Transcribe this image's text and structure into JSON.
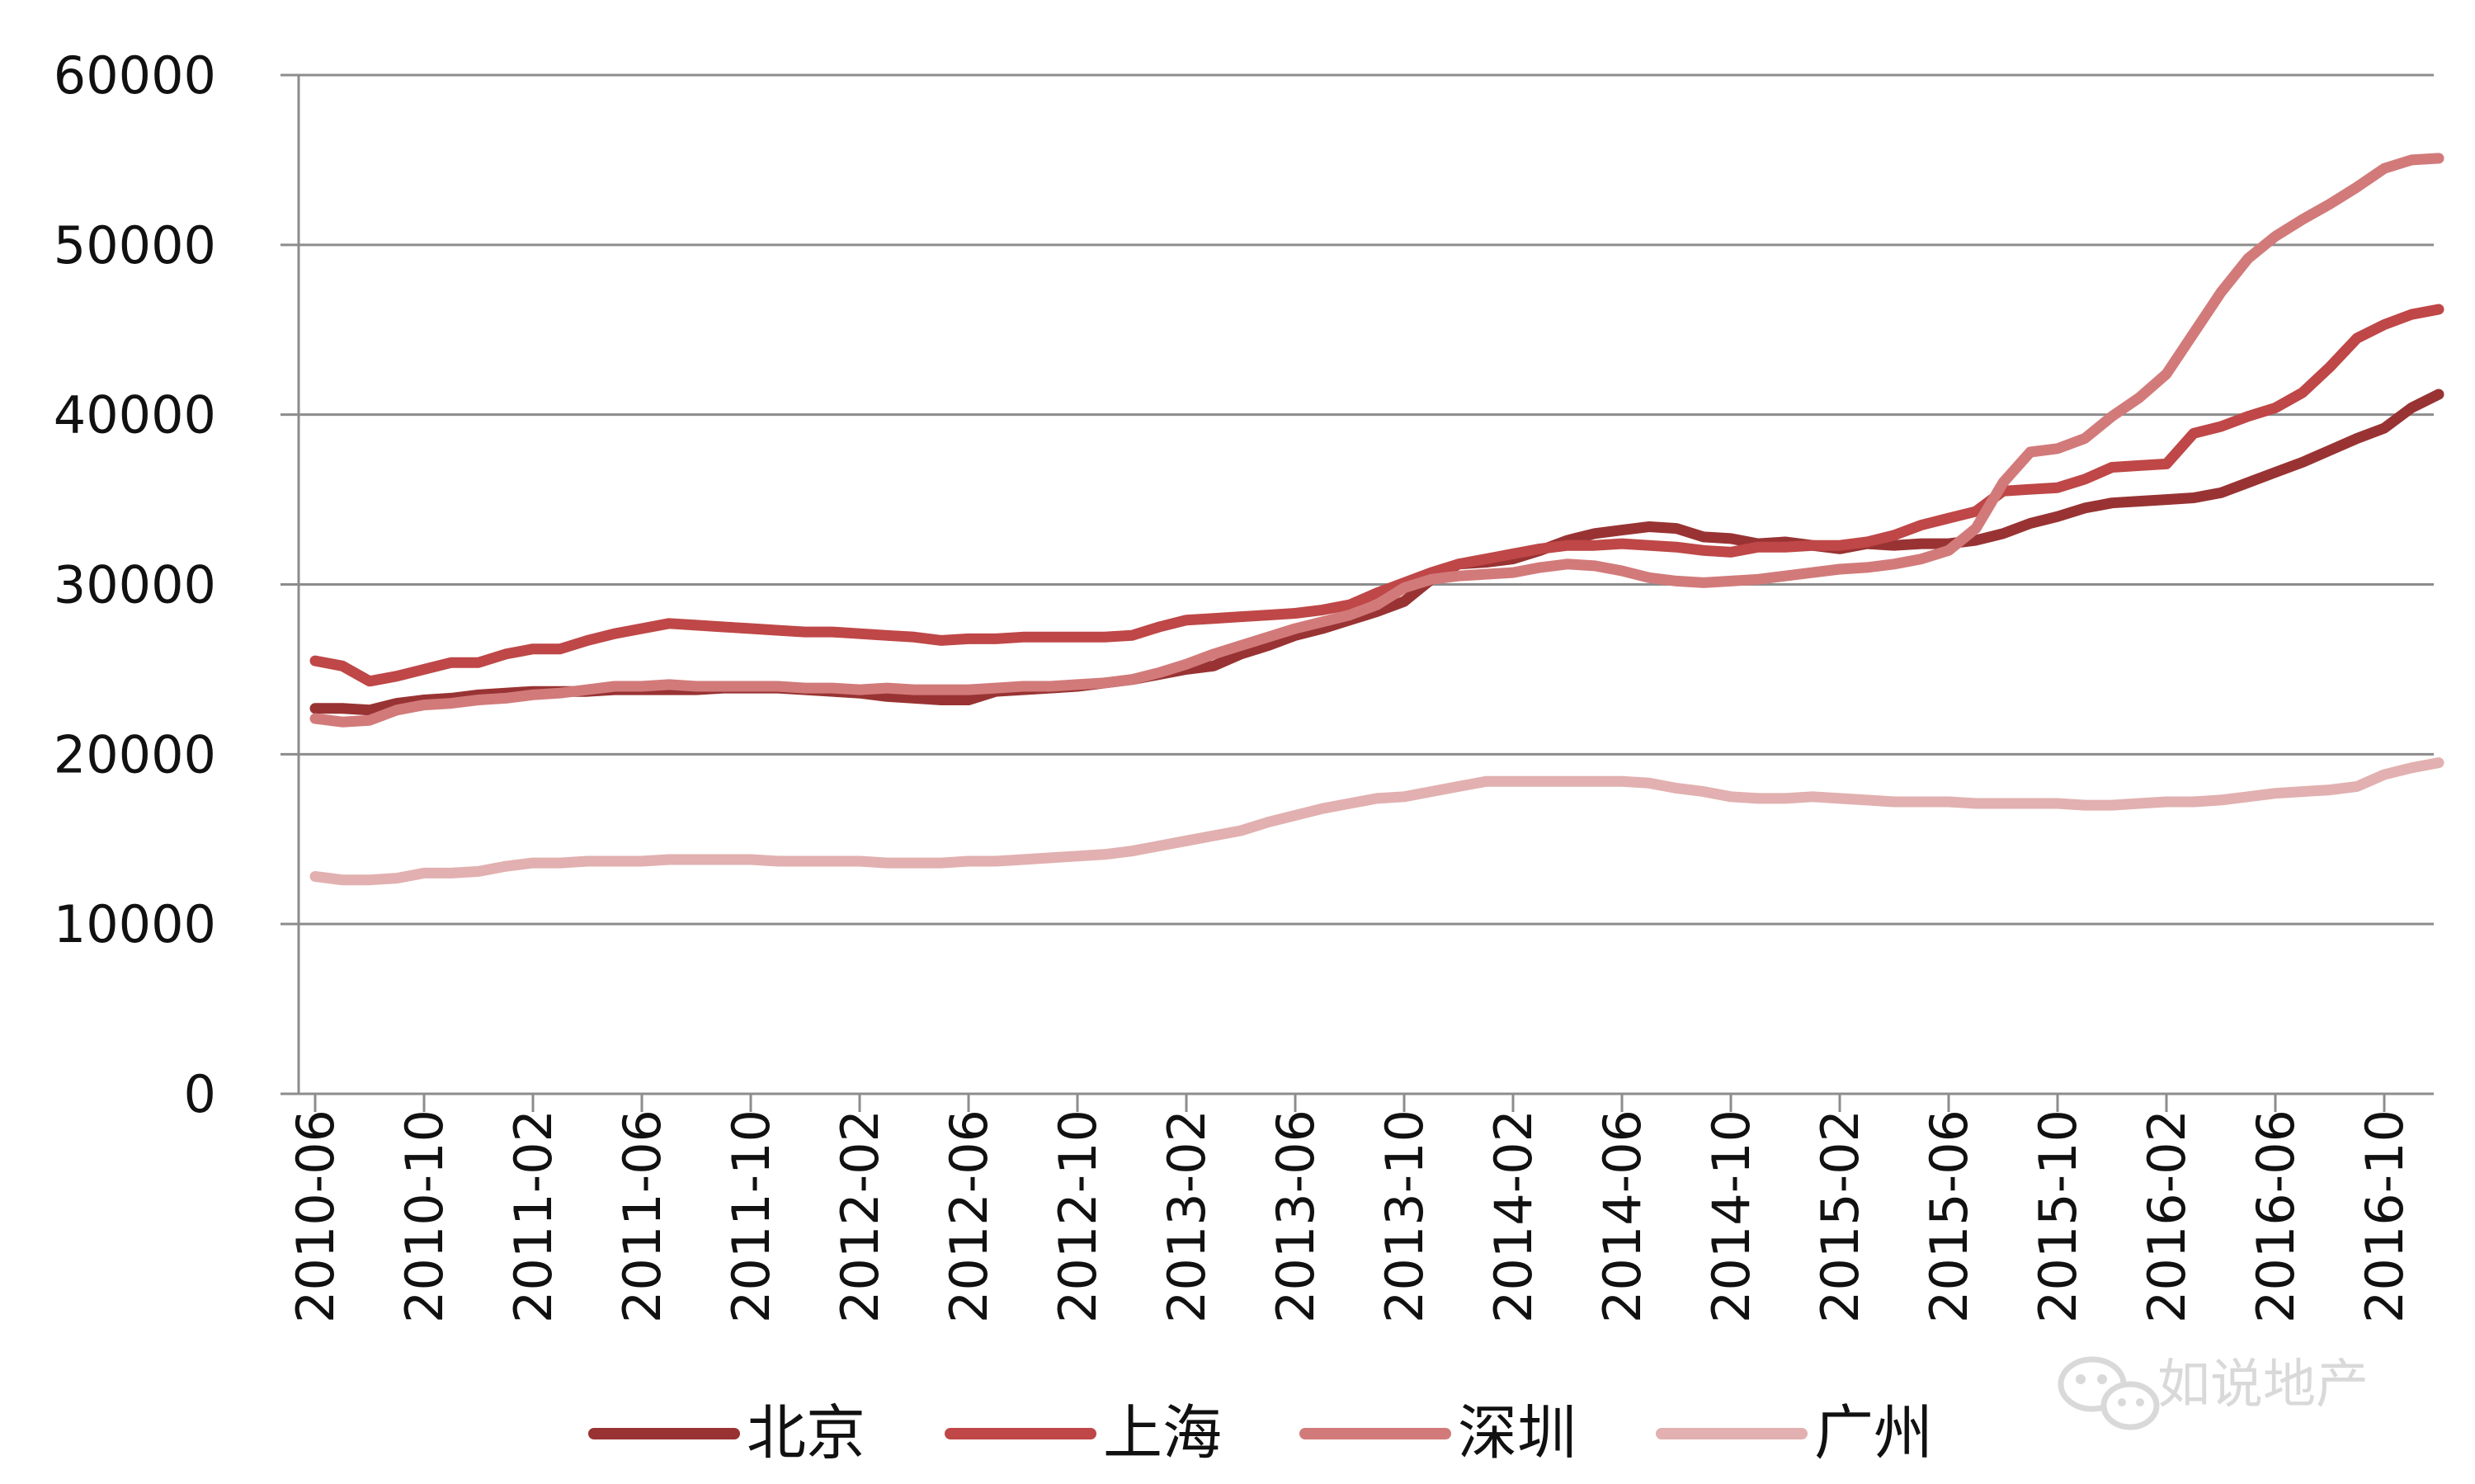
{
  "chart_data": {
    "type": "line",
    "title": "",
    "xlabel": "",
    "ylabel": "",
    "ylim": [
      0,
      60000
    ],
    "yticks": [
      "0",
      "10000",
      "20000",
      "30000",
      "40000",
      "50000",
      "60000"
    ],
    "xtick_labels": [
      "2010-06",
      "2010-10",
      "2011-02",
      "2011-06",
      "2011-10",
      "2012-02",
      "2012-06",
      "2012-10",
      "2013-02",
      "2013-06",
      "2013-10",
      "2014-02",
      "2014-06",
      "2014-10",
      "2015-02",
      "2015-06",
      "2015-10",
      "2016-02",
      "2016-06",
      "2016-10"
    ],
    "x": [
      "2010-06",
      "2010-07",
      "2010-08",
      "2010-09",
      "2010-10",
      "2010-11",
      "2010-12",
      "2011-01",
      "2011-02",
      "2011-03",
      "2011-04",
      "2011-05",
      "2011-06",
      "2011-07",
      "2011-08",
      "2011-09",
      "2011-10",
      "2011-11",
      "2011-12",
      "2012-01",
      "2012-02",
      "2012-03",
      "2012-04",
      "2012-05",
      "2012-06",
      "2012-07",
      "2012-08",
      "2012-09",
      "2012-10",
      "2012-11",
      "2012-12",
      "2013-01",
      "2013-02",
      "2013-03",
      "2013-04",
      "2013-05",
      "2013-06",
      "2013-07",
      "2013-08",
      "2013-09",
      "2013-10",
      "2013-11",
      "2013-12",
      "2014-01",
      "2014-02",
      "2014-03",
      "2014-04",
      "2014-05",
      "2014-06",
      "2014-07",
      "2014-08",
      "2014-09",
      "2014-10",
      "2014-11",
      "2014-12",
      "2015-01",
      "2015-02",
      "2015-03",
      "2015-04",
      "2015-05",
      "2015-06",
      "2015-07",
      "2015-08",
      "2015-09",
      "2015-10",
      "2015-11",
      "2015-12",
      "2016-01",
      "2016-02",
      "2016-03",
      "2016-04",
      "2016-05",
      "2016-06",
      "2016-07",
      "2016-08",
      "2016-09",
      "2016-10",
      "2016-11",
      "2016-12"
    ],
    "grid": true,
    "legend_position": "bottom",
    "series": [
      {
        "name": "北京",
        "color": "#993333",
        "values": [
          22700,
          22700,
          22600,
          23000,
          23200,
          23300,
          23500,
          23600,
          23700,
          23700,
          23700,
          23800,
          23800,
          23800,
          23800,
          23900,
          23900,
          23900,
          23800,
          23700,
          23600,
          23400,
          23300,
          23200,
          23200,
          23700,
          23800,
          23900,
          24000,
          24200,
          24400,
          24700,
          25000,
          25200,
          25900,
          26400,
          27000,
          27400,
          27900,
          28400,
          29000,
          30300,
          31200,
          31300,
          31500,
          32000,
          32600,
          33000,
          33200,
          33400,
          33300,
          32800,
          32700,
          32400,
          32500,
          32300,
          32100,
          32400,
          32300,
          32400,
          32400,
          32600,
          33000,
          33600,
          34000,
          34500,
          34800,
          34900,
          35000,
          35100,
          35400,
          36000,
          36600,
          37200,
          37900,
          38600,
          39200,
          40400,
          41200
        ]
      },
      {
        "name": "上海",
        "color": "#BF4747",
        "values": [
          25500,
          25200,
          24300,
          24600,
          25000,
          25400,
          25400,
          25900,
          26200,
          26200,
          26700,
          27100,
          27400,
          27700,
          27600,
          27500,
          27400,
          27300,
          27200,
          27200,
          27100,
          27000,
          26900,
          26700,
          26800,
          26800,
          26900,
          26900,
          26900,
          26900,
          27000,
          27500,
          27900,
          28000,
          28100,
          28200,
          28300,
          28500,
          28800,
          29500,
          30100,
          30700,
          31200,
          31500,
          31800,
          32100,
          32300,
          32300,
          32400,
          32300,
          32200,
          32000,
          31900,
          32200,
          32200,
          32300,
          32300,
          32500,
          32900,
          33500,
          33900,
          34300,
          35500,
          35600,
          35700,
          36200,
          36900,
          37000,
          37100,
          38900,
          39300,
          39900,
          40400,
          41300,
          42800,
          44500,
          45300,
          45900,
          46200
        ]
      },
      {
        "name": "深圳",
        "color": "#D27A7A",
        "values": [
          22100,
          21900,
          22000,
          22600,
          22900,
          23000,
          23200,
          23300,
          23500,
          23600,
          23800,
          24000,
          24000,
          24100,
          24000,
          24000,
          24000,
          24000,
          23900,
          23900,
          23800,
          23900,
          23800,
          23800,
          23800,
          23900,
          24000,
          24000,
          24100,
          24200,
          24400,
          24800,
          25300,
          25900,
          26400,
          26900,
          27400,
          27800,
          28200,
          28800,
          29800,
          30300,
          30500,
          30600,
          30700,
          31000,
          31200,
          31100,
          30800,
          30400,
          30200,
          30100,
          30200,
          30300,
          30500,
          30700,
          30900,
          31000,
          31200,
          31500,
          32000,
          33300,
          36000,
          37800,
          38000,
          38600,
          39900,
          41000,
          42400,
          44800,
          47200,
          49200,
          50500,
          51500,
          52400,
          53400,
          54500,
          55000,
          55100
        ]
      },
      {
        "name": "广州",
        "color": "#E2B0B0",
        "values": [
          12800,
          12600,
          12600,
          12700,
          13000,
          13000,
          13100,
          13400,
          13600,
          13600,
          13700,
          13700,
          13700,
          13800,
          13800,
          13800,
          13800,
          13700,
          13700,
          13700,
          13700,
          13600,
          13600,
          13600,
          13700,
          13700,
          13800,
          13900,
          14000,
          14100,
          14300,
          14600,
          14900,
          15200,
          15500,
          16000,
          16400,
          16800,
          17100,
          17400,
          17500,
          17800,
          18100,
          18400,
          18400,
          18400,
          18400,
          18400,
          18400,
          18300,
          18000,
          17800,
          17500,
          17400,
          17400,
          17500,
          17400,
          17300,
          17200,
          17200,
          17200,
          17100,
          17100,
          17100,
          17100,
          17000,
          17000,
          17100,
          17200,
          17200,
          17300,
          17500,
          17700,
          17800,
          17900,
          18100,
          18800,
          19200,
          19500
        ]
      }
    ]
  },
  "legend": {
    "items": [
      {
        "label": "北京",
        "color": "#993333"
      },
      {
        "label": "上海",
        "color": "#BF4747"
      },
      {
        "label": "深圳",
        "color": "#D27A7A"
      },
      {
        "label": "广州",
        "color": "#E2B0B0"
      }
    ]
  },
  "watermark": {
    "text": "如说地产",
    "icon": "wechat-icon"
  }
}
